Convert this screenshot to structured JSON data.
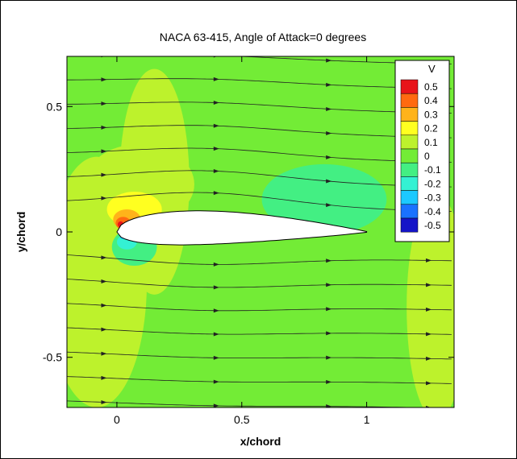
{
  "chart_data": {
    "type": "heatmap",
    "title": "NACA 63-415, Angle of Attack=0 degrees",
    "xlabel": "x/chord",
    "ylabel": "y/chord",
    "xlim": [
      -0.2,
      1.35
    ],
    "ylim": [
      -0.7,
      0.7
    ],
    "xticks": [
      0,
      0.5,
      1
    ],
    "xtick_labels": [
      "0",
      "0.5",
      "1"
    ],
    "yticks": [
      -0.5,
      0,
      0.5
    ],
    "ytick_labels": [
      "-0.5",
      "0",
      "0.5"
    ],
    "grid": false,
    "legend": {
      "title": "V",
      "placement": "top-right",
      "levels": [
        0.5,
        0.4,
        0.3,
        0.2,
        0.1,
        0,
        -0.1,
        -0.2,
        -0.3,
        -0.4,
        -0.5
      ],
      "labels": [
        "0.5",
        "0.4",
        "0.3",
        "0.2",
        "0.1",
        "0",
        "-0.1",
        "-0.2",
        "-0.3",
        "-0.4",
        "-0.5"
      ],
      "colors": [
        "#e8141a",
        "#ff6a10",
        "#ffb31a",
        "#ffff20",
        "#bdf22c",
        "#73ec36",
        "#43ef83",
        "#34f1d3",
        "#1cc9ff",
        "#1a72ff",
        "#1414c8"
      ]
    },
    "background_value": 0,
    "airfoil": {
      "name": "NACA 63-415",
      "leading_edge_x": 0,
      "trailing_edge_x": 1
    },
    "contour_regions": [
      {
        "value": 0.1,
        "shape": "ellipse",
        "center": [
          0.09,
          0.19
        ],
        "radii": [
          0.22,
          0.16
        ]
      },
      {
        "value": 0.2,
        "shape": "ellipse",
        "center": [
          0.07,
          0.09
        ],
        "radii": [
          0.11,
          0.07
        ]
      },
      {
        "value": 0.3,
        "shape": "ellipse",
        "center": [
          0.04,
          0.05
        ],
        "radii": [
          0.055,
          0.04
        ]
      },
      {
        "value": 0.4,
        "shape": "ellipse",
        "center": [
          0.025,
          0.035
        ],
        "radii": [
          0.03,
          0.025
        ]
      },
      {
        "value": 0.5,
        "shape": "ellipse",
        "center": [
          0.015,
          0.03
        ],
        "radii": [
          0.012,
          0.012
        ]
      },
      {
        "value": -0.1,
        "shape": "ellipse",
        "center": [
          0.07,
          -0.06
        ],
        "radii": [
          0.09,
          0.075
        ]
      },
      {
        "value": -0.2,
        "shape": "ellipse",
        "center": [
          0.04,
          -0.04
        ],
        "radii": [
          0.04,
          0.03
        ]
      },
      {
        "value": -0.3,
        "shape": "ellipse",
        "center": [
          0.025,
          -0.02
        ],
        "radii": [
          0.012,
          0.009
        ]
      },
      {
        "value": -0.1,
        "shape": "ellipse",
        "center": [
          0.83,
          0.13
        ],
        "radii": [
          0.25,
          0.14
        ]
      },
      {
        "value": 0.1,
        "shape": "ellipse",
        "center": [
          0.15,
          0.2
        ],
        "radii": [
          0.14,
          0.45
        ]
      },
      {
        "value": 0.1,
        "shape": "ellipse",
        "center": [
          -0.08,
          -0.2
        ],
        "radii": [
          0.2,
          0.5
        ]
      },
      {
        "value": 0.1,
        "shape": "ellipse",
        "center": [
          1.28,
          -0.3
        ],
        "radii": [
          0.12,
          0.45
        ]
      }
    ]
  }
}
